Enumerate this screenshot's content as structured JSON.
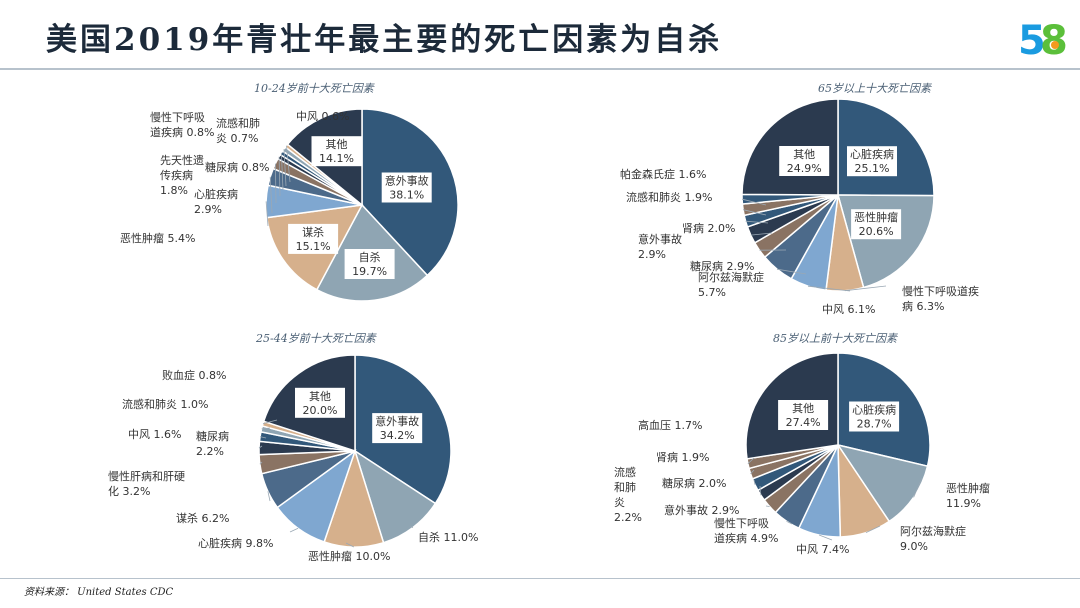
{
  "header": {
    "title": "美国2019年青壮年最主要的死亡因素为自杀",
    "logo_text": "58"
  },
  "footer": {
    "source": "资料来源： United States CDC"
  },
  "colors": {
    "dark_navy": "#2b3a4f",
    "steel_blue": "#32587a",
    "gray_blue": "#8fa5b3",
    "tan": "#d6b08c",
    "light_blue": "#7fa7d0",
    "slate": "#4c6a8a",
    "brown": "#8a7363",
    "logo_blue": "#1a9be0",
    "logo_green": "#5bbf3a",
    "logo_orange": "#f39a1e"
  },
  "chart_data": [
    {
      "type": "pie",
      "title": "10-24岁前十大死亡因素",
      "slices": [
        {
          "label": "意外事故",
          "pct": "38.1%",
          "value": 38.1,
          "color": "#32587a",
          "inside": true
        },
        {
          "label": "自杀",
          "pct": "19.7%",
          "value": 19.7,
          "color": "#8fa5b3",
          "inside": true
        },
        {
          "label": "谋杀",
          "pct": "15.1%",
          "value": 15.1,
          "color": "#d6b08c",
          "inside": true
        },
        {
          "label": "恶性肿瘤",
          "pct": "5.4%",
          "value": 5.4,
          "color": "#7fa7d0",
          "inside": false,
          "lines": [
            "恶性肿瘤 5.4%"
          ]
        },
        {
          "label": "心脏疾病",
          "pct": "2.9%",
          "value": 2.9,
          "color": "#4c6a8a",
          "inside": false,
          "lines": [
            "心脏疾病",
            "2.9%"
          ]
        },
        {
          "label": "先天性遗传疾病",
          "pct": "1.8%",
          "value": 1.8,
          "color": "#8a7363",
          "inside": false,
          "lines": [
            "先天性遗",
            "传疾病",
            "1.8%"
          ]
        },
        {
          "label": "糖尿病",
          "pct": "0.8%",
          "value": 0.8,
          "color": "#2b3a4f",
          "inside": false,
          "lines": [
            "糖尿病 0.8%"
          ]
        },
        {
          "label": "流感和肺炎",
          "pct": "0.7%",
          "value": 0.7,
          "color": "#32587a",
          "inside": false,
          "lines": [
            "流感和肺",
            "炎 0.7%"
          ]
        },
        {
          "label": "慢性下呼吸道疾病",
          "pct": "0.8%",
          "value": 0.8,
          "color": "#8fa5b3",
          "inside": false,
          "lines": [
            "慢性下呼吸",
            "道疾病 0.8%"
          ]
        },
        {
          "label": "中风",
          "pct": "0.6%",
          "value": 0.6,
          "color": "#d6b08c",
          "inside": false,
          "lines": [
            "中风 0.6%"
          ]
        },
        {
          "label": "其他",
          "pct": "14.1%",
          "value": 14.1,
          "color": "#2b3a4f",
          "inside": true
        }
      ]
    },
    {
      "type": "pie",
      "title": "65岁以上十大死亡因素",
      "slices": [
        {
          "label": "心脏疾病",
          "pct": "25.1%",
          "value": 25.1,
          "color": "#32587a",
          "inside": true
        },
        {
          "label": "恶性肿瘤",
          "pct": "20.6%",
          "value": 20.6,
          "color": "#8fa5b3",
          "inside": true
        },
        {
          "label": "慢性下呼吸道疾病",
          "pct": "6.3%",
          "value": 6.3,
          "color": "#d6b08c",
          "inside": false,
          "lines": [
            "慢性下呼吸道疾",
            "病 6.3%"
          ]
        },
        {
          "label": "中风",
          "pct": "6.1%",
          "value": 6.1,
          "color": "#7fa7d0",
          "inside": false,
          "lines": [
            "中风 6.1%"
          ]
        },
        {
          "label": "阿尔兹海默症",
          "pct": "5.7%",
          "value": 5.7,
          "color": "#4c6a8a",
          "inside": false,
          "lines": [
            "阿尔兹海默症",
            "5.7%"
          ]
        },
        {
          "label": "糖尿病",
          "pct": "2.9%",
          "value": 2.9,
          "color": "#8a7363",
          "inside": false,
          "lines": [
            "糖尿病 2.9%"
          ]
        },
        {
          "label": "意外事故",
          "pct": "2.9%",
          "value": 2.9,
          "color": "#2b3a4f",
          "inside": false,
          "lines": [
            "意外事故",
            "2.9%"
          ]
        },
        {
          "label": "肾病",
          "pct": "2.0%",
          "value": 2.0,
          "color": "#32587a",
          "inside": false,
          "lines": [
            "肾病 2.0%"
          ]
        },
        {
          "label": "流感和肺炎",
          "pct": "1.9%",
          "value": 1.9,
          "color": "#8a7363",
          "inside": false,
          "lines": [
            "流感和肺炎 1.9%"
          ]
        },
        {
          "label": "帕金森氏症",
          "pct": "1.6%",
          "value": 1.6,
          "color": "#32587a",
          "inside": false,
          "lines": [
            "帕金森氏症 1.6%"
          ]
        },
        {
          "label": "其他",
          "pct": "24.9%",
          "value": 24.9,
          "color": "#2b3a4f",
          "inside": true
        }
      ]
    },
    {
      "type": "pie",
      "title": "25-44岁前十大死亡因素",
      "slices": [
        {
          "label": "意外事故",
          "pct": "34.2%",
          "value": 34.2,
          "color": "#32587a",
          "inside": true
        },
        {
          "label": "自杀",
          "pct": "11.0%",
          "value": 11.0,
          "color": "#8fa5b3",
          "inside": false,
          "lines": [
            "自杀 11.0%"
          ]
        },
        {
          "label": "恶性肿瘤",
          "pct": "10.0%",
          "value": 10.0,
          "color": "#d6b08c",
          "inside": false,
          "lines": [
            "恶性肿瘤 10.0%"
          ]
        },
        {
          "label": "心脏疾病",
          "pct": "9.8%",
          "value": 9.8,
          "color": "#7fa7d0",
          "inside": false,
          "lines": [
            "心脏疾病 9.8%"
          ]
        },
        {
          "label": "谋杀",
          "pct": "6.2%",
          "value": 6.2,
          "color": "#4c6a8a",
          "inside": false,
          "lines": [
            "谋杀 6.2%"
          ]
        },
        {
          "label": "慢性肝病和肝硬化",
          "pct": "3.2%",
          "value": 3.2,
          "color": "#8a7363",
          "inside": false,
          "lines": [
            "慢性肝病和肝硬",
            "化 3.2%"
          ]
        },
        {
          "label": "糖尿病",
          "pct": "2.2%",
          "value": 2.2,
          "color": "#2b3a4f",
          "inside": false,
          "lines": [
            "糖尿病",
            "2.2%"
          ]
        },
        {
          "label": "中风",
          "pct": "1.6%",
          "value": 1.6,
          "color": "#32587a",
          "inside": false,
          "lines": [
            "中风 1.6%"
          ]
        },
        {
          "label": "流感和肺炎",
          "pct": "1.0%",
          "value": 1.0,
          "color": "#8fa5b3",
          "inside": false,
          "lines": [
            "流感和肺炎 1.0%"
          ]
        },
        {
          "label": "败血症",
          "pct": "0.8%",
          "value": 0.8,
          "color": "#d6b08c",
          "inside": false,
          "lines": [
            "败血症 0.8%"
          ]
        },
        {
          "label": "其他",
          "pct": "20.0%",
          "value": 20.0,
          "color": "#2b3a4f",
          "inside": true
        }
      ]
    },
    {
      "type": "pie",
      "title": "85岁以上前十大死亡因素",
      "slices": [
        {
          "label": "心脏疾病",
          "pct": "28.7%",
          "value": 28.7,
          "color": "#32587a",
          "inside": true
        },
        {
          "label": "恶性肿瘤",
          "pct": "11.9%",
          "value": 11.9,
          "color": "#8fa5b3",
          "inside": false,
          "lines": [
            "恶性肿瘤",
            "11.9%"
          ]
        },
        {
          "label": "阿尔兹海默症",
          "pct": "9.0%",
          "value": 9.0,
          "color": "#d6b08c",
          "inside": false,
          "lines": [
            "阿尔兹海默症",
            "9.0%"
          ]
        },
        {
          "label": "中风",
          "pct": "7.4%",
          "value": 7.4,
          "color": "#7fa7d0",
          "inside": false,
          "lines": [
            "中风 7.4%"
          ]
        },
        {
          "label": "慢性下呼吸道疾病",
          "pct": "4.9%",
          "value": 4.9,
          "color": "#4c6a8a",
          "inside": false,
          "lines": [
            "慢性下呼吸",
            "道疾病 4.9%"
          ]
        },
        {
          "label": "意外事故",
          "pct": "2.9%",
          "value": 2.9,
          "color": "#8a7363",
          "inside": false,
          "lines": [
            "意外事故 2.9%"
          ]
        },
        {
          "label": "糖尿病",
          "pct": "2.0%",
          "value": 2.0,
          "color": "#2b3a4f",
          "inside": false,
          "lines": [
            "糖尿病 2.0%"
          ]
        },
        {
          "label": "流感和肺炎",
          "pct": "2.2%",
          "value": 2.2,
          "color": "#32587a",
          "inside": false,
          "lines": [
            "流感",
            "和肺",
            "炎",
            "2.2%"
          ]
        },
        {
          "label": "肾病",
          "pct": "1.9%",
          "value": 1.9,
          "color": "#8a7363",
          "inside": false,
          "lines": [
            "肾病 1.9%"
          ]
        },
        {
          "label": "高血压",
          "pct": "1.7%",
          "value": 1.7,
          "color": "#8a7363",
          "inside": false,
          "lines": [
            "高血压 1.7%"
          ]
        },
        {
          "label": "其他",
          "pct": "27.4%",
          "value": 27.4,
          "color": "#2b3a4f",
          "inside": true
        }
      ]
    }
  ]
}
